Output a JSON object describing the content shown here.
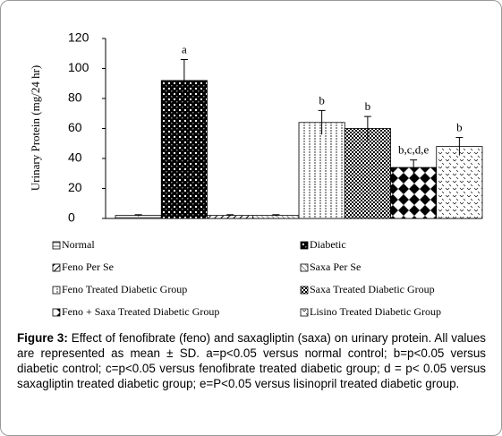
{
  "chart_data": {
    "type": "bar",
    "y_label": "Urinary Protein (mg/24 hr)",
    "categories": [
      "Normal",
      "Diabetic",
      "Feno Per Se",
      "Saxa Per Se",
      "Feno Treated Diabetic Group",
      "Saxa Treated Diabetic Group",
      "Feno + Saxa Treated Diabetic Group",
      "Lisino Treated Diabetic Group"
    ],
    "values": [
      2,
      92,
      2,
      2,
      64,
      60,
      34,
      48
    ],
    "errors": [
      0.5,
      14,
      0.5,
      0.5,
      8,
      8,
      5,
      6
    ],
    "annotations": [
      null,
      "a",
      null,
      null,
      "b",
      "b",
      "b,c,d,e",
      "b"
    ],
    "ylim": [
      0,
      120
    ],
    "yticks": [
      0,
      20,
      40,
      60,
      80,
      100,
      120
    ],
    "caption": {
      "label": "Figure 3:",
      "text": "Effect of fenofibrate (feno) and saxagliptin (saxa) on urinary protein. All values are represented as mean ± SD. a=p<0.05 versus normal control; b=p<0.05 versus diabetic control; c=p<0.05 versus fenofibrate treated diabetic group; d = p< 0.05 versus saxagliptin treated diabetic group; e=P<0.05 versus lisinopril treated diabetic group."
    }
  }
}
